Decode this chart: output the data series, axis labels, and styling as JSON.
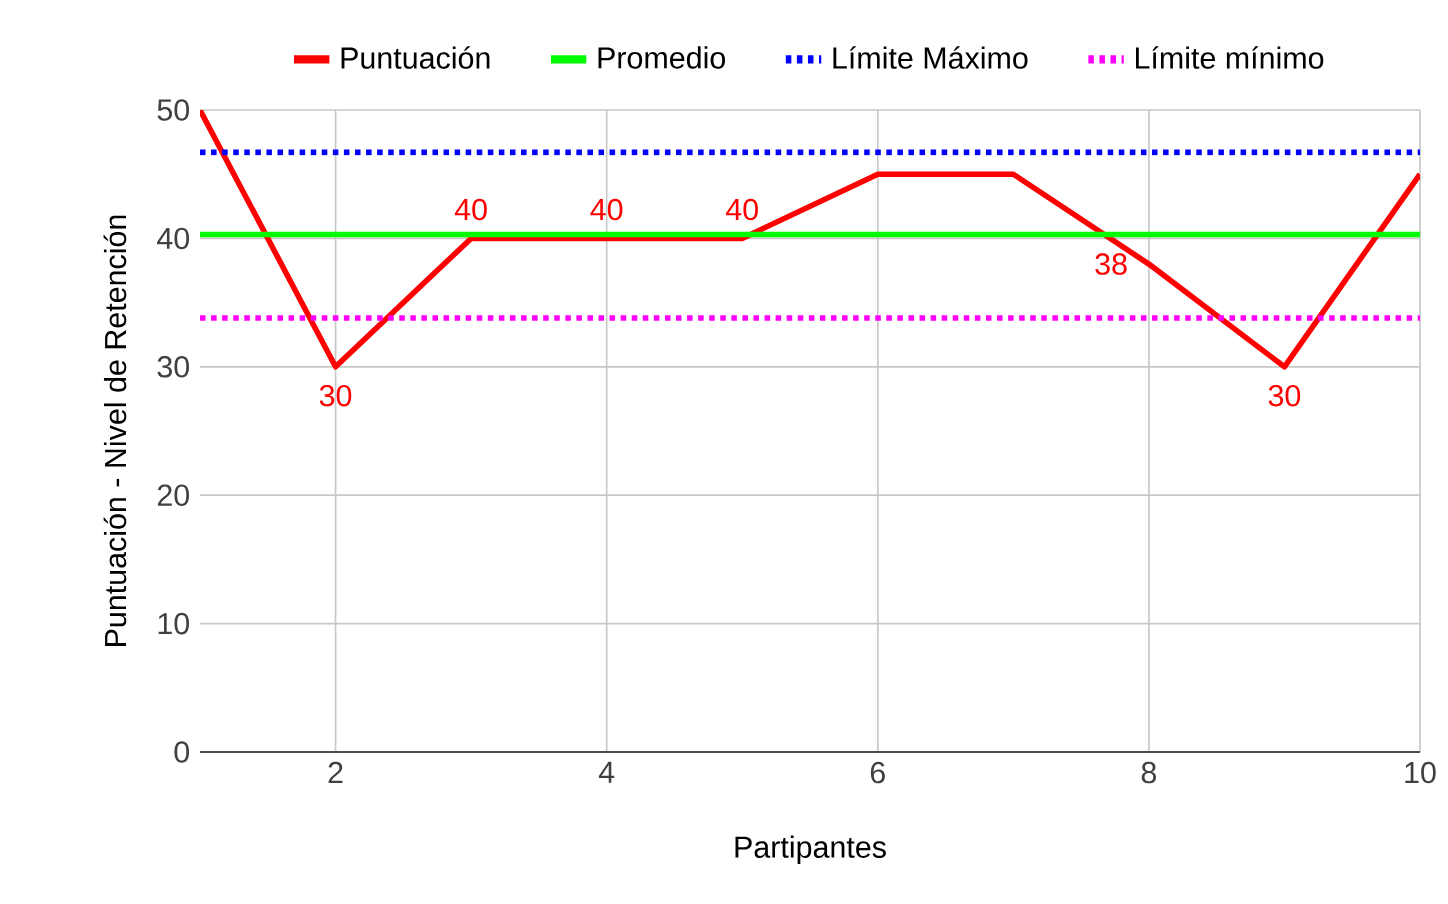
{
  "chart_data": {
    "type": "line",
    "xlabel": "Partipantes",
    "ylabel": "Puntuación - Nivel de Retención",
    "x": [
      1,
      2,
      3,
      4,
      5,
      6,
      7,
      8,
      9,
      10
    ],
    "series": [
      {
        "name": "Puntuación",
        "color": "#ff0000",
        "line_style": "solid",
        "values": [
          50,
          30,
          40,
          40,
          40,
          45,
          45,
          38,
          30,
          45
        ],
        "value_labels": [
          null,
          "30",
          "40",
          "40",
          "40",
          null,
          null,
          "38",
          "30",
          null
        ]
      },
      {
        "name": "Promedio",
        "color": "#00ff00",
        "line_style": "solid",
        "values": [
          40.3,
          40.3,
          40.3,
          40.3,
          40.3,
          40.3,
          40.3,
          40.3,
          40.3,
          40.3
        ]
      },
      {
        "name": "Límite Máximo",
        "color": "#0000ff",
        "line_style": "dotted",
        "values": [
          46.7,
          46.7,
          46.7,
          46.7,
          46.7,
          46.7,
          46.7,
          46.7,
          46.7,
          46.7
        ]
      },
      {
        "name": "Límite mínimo",
        "color": "#ff00ff",
        "line_style": "dotted",
        "values": [
          33.8,
          33.8,
          33.8,
          33.8,
          33.8,
          33.8,
          33.8,
          33.8,
          33.8,
          33.8
        ]
      }
    ],
    "xlim": [
      1,
      10
    ],
    "xticks": [
      2,
      4,
      6,
      8,
      10
    ],
    "ylim": [
      0,
      50
    ],
    "yticks": [
      0,
      10,
      20,
      30,
      40,
      50
    ],
    "grid": true,
    "legend": "top",
    "marker": "none"
  }
}
